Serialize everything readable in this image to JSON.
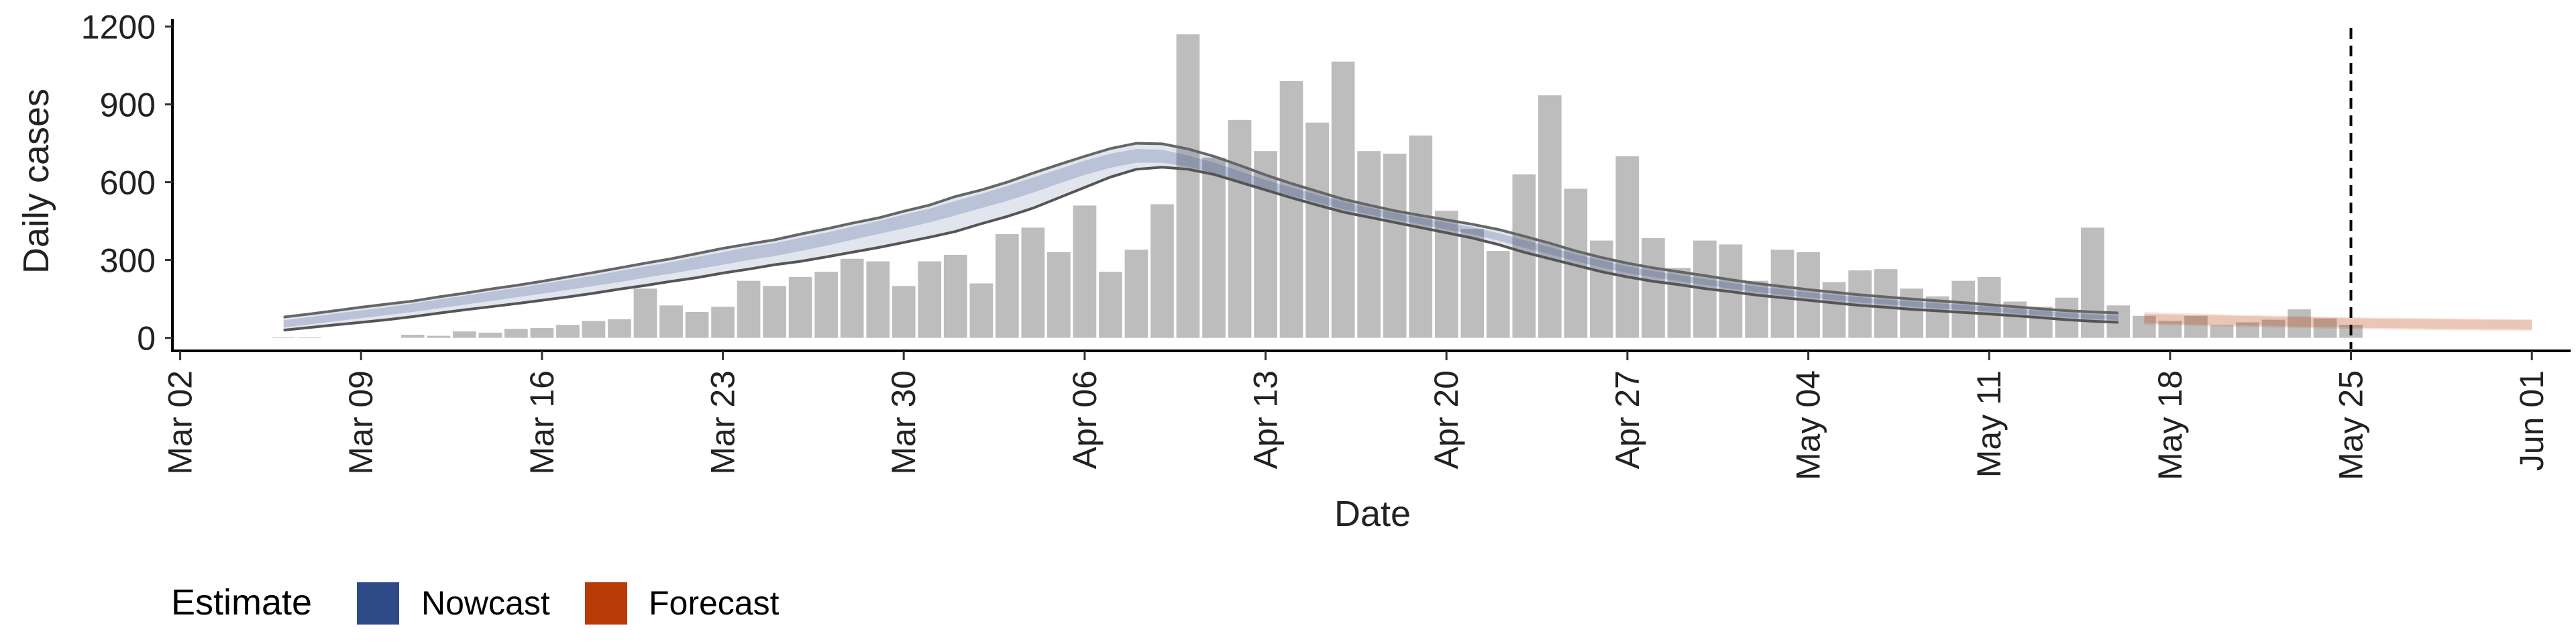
{
  "chart_data": {
    "type": "bar",
    "title": "",
    "xlabel": "Date",
    "ylabel": "Daily cases",
    "ylim": [
      -50,
      1230
    ],
    "yticks": [
      0,
      300,
      600,
      900,
      1200
    ],
    "y_tick_labels": [
      "0",
      "300",
      "600",
      "900",
      "1200"
    ],
    "x_start": "2020-03-02",
    "xlim_days": [
      -0.3,
      92.5
    ],
    "xticks": [
      {
        "label": "Mar 02",
        "date": "2020-03-02"
      },
      {
        "label": "Mar 09",
        "date": "2020-03-09"
      },
      {
        "label": "Mar 16",
        "date": "2020-03-16"
      },
      {
        "label": "Mar 23",
        "date": "2020-03-23"
      },
      {
        "label": "Mar 30",
        "date": "2020-03-30"
      },
      {
        "label": "Apr 06",
        "date": "2020-04-06"
      },
      {
        "label": "Apr 13",
        "date": "2020-04-13"
      },
      {
        "label": "Apr 20",
        "date": "2020-04-20"
      },
      {
        "label": "Apr 27",
        "date": "2020-04-27"
      },
      {
        "label": "May 04",
        "date": "2020-05-04"
      },
      {
        "label": "May 11",
        "date": "2020-05-11"
      },
      {
        "label": "May 18",
        "date": "2020-05-18"
      },
      {
        "label": "May 25",
        "date": "2020-05-25"
      },
      {
        "label": "Jun 01",
        "date": "2020-06-01"
      }
    ],
    "bar_color": "#bdbdbd",
    "bars": {
      "first_date": "2020-03-06",
      "values": [
        2,
        2,
        0,
        0,
        0,
        12,
        8,
        25,
        20,
        35,
        38,
        50,
        65,
        72,
        190,
        125,
        100,
        120,
        220,
        200,
        235,
        255,
        305,
        295,
        200,
        295,
        320,
        210,
        400,
        425,
        330,
        510,
        255,
        340,
        515,
        1170,
        695,
        840,
        720,
        990,
        830,
        1065,
        720,
        710,
        780,
        490,
        420,
        335,
        630,
        935,
        575,
        375,
        700,
        385,
        270,
        375,
        360,
        220,
        340,
        330,
        215,
        260,
        265,
        190,
        160,
        220,
        235,
        140,
        120,
        155,
        425,
        125,
        85,
        65,
        85,
        50,
        60,
        70,
        110,
        75,
        50
      ]
    },
    "series": [
      {
        "name": "Nowcast",
        "color": "#2e4a87",
        "start_date": "2020-03-06",
        "median": [
          55,
          67,
          80,
          93,
          105,
          118,
          135,
          150,
          165,
          180,
          195,
          212,
          228,
          245,
          262,
          280,
          298,
          318,
          335,
          350,
          372,
          393,
          415,
          436,
          462,
          486,
          515,
          540,
          568,
          600,
          632,
          663,
          690,
          705,
          700,
          680,
          652,
          620,
          590,
          565,
          538,
          512,
          490,
          470,
          452,
          432,
          414,
          390,
          362,
          335,
          308,
          285,
          262,
          245,
          230,
          214,
          200,
          186,
          175,
          164,
          155,
          146,
          138,
          131,
          124,
          118,
          112,
          104,
          96,
          88,
          80,
          75
        ],
        "lower": [
          30,
          40,
          50,
          60,
          70,
          82,
          95,
          108,
          120,
          132,
          145,
          158,
          172,
          188,
          202,
          218,
          232,
          250,
          265,
          282,
          295,
          312,
          330,
          348,
          368,
          388,
          410,
          440,
          468,
          500,
          540,
          580,
          620,
          650,
          658,
          650,
          630,
          600,
          570,
          540,
          512,
          485,
          465,
          445,
          425,
          405,
          385,
          360,
          330,
          305,
          280,
          255,
          235,
          218,
          205,
          190,
          178,
          165,
          155,
          145,
          135,
          125,
          118,
          110,
          104,
          98,
          92,
          85,
          78,
          70,
          64,
          60
        ],
        "upper": [
          80,
          92,
          105,
          118,
          130,
          142,
          158,
          172,
          188,
          202,
          218,
          235,
          252,
          270,
          288,
          305,
          325,
          345,
          362,
          378,
          400,
          420,
          442,
          462,
          488,
          512,
          545,
          570,
          600,
          635,
          668,
          700,
          730,
          750,
          748,
          728,
          700,
          665,
          628,
          595,
          565,
          535,
          512,
          490,
          472,
          455,
          438,
          418,
          392,
          365,
          335,
          310,
          288,
          270,
          255,
          240,
          224,
          210,
          198,
          186,
          176,
          166,
          158,
          150,
          143,
          136,
          128,
          120,
          112,
          105,
          100,
          96
        ],
        "band50_lower": [
          40,
          52,
          64,
          76,
          88,
          100,
          114,
          128,
          142,
          156,
          170,
          185,
          200,
          215,
          232,
          248,
          265,
          282,
          300,
          315,
          335,
          355,
          378,
          400,
          422,
          445,
          472,
          500,
          528,
          560,
          595,
          628,
          656,
          675,
          675,
          660,
          635,
          605,
          575,
          548,
          522,
          496,
          476,
          456,
          438,
          418,
          400,
          375,
          348,
          322,
          296,
          272,
          250,
          234,
          219,
          204,
          190,
          177,
          166,
          156,
          146,
          137,
          129,
          121,
          114,
          108,
          102,
          94,
          87,
          80,
          73,
          69
        ],
        "band50_upper": [
          68,
          80,
          94,
          106,
          118,
          132,
          148,
          162,
          178,
          192,
          208,
          224,
          240,
          258,
          275,
          292,
          312,
          330,
          350,
          365,
          386,
          406,
          428,
          450,
          475,
          498,
          528,
          555,
          585,
          618,
          650,
          683,
          710,
          728,
          725,
          703,
          676,
          643,
          608,
          580,
          552,
          525,
          502,
          482,
          462,
          444,
          427,
          404,
          377,
          350,
          322,
          298,
          275,
          258,
          242,
          227,
          212,
          198,
          187,
          175,
          165,
          156,
          148,
          140,
          133,
          127,
          120,
          112,
          104,
          96,
          90,
          85
        ]
      },
      {
        "name": "Forecast",
        "color": "#b83a05",
        "start_date": "2020-05-17",
        "median": [
          75,
          72,
          70,
          68,
          66,
          64,
          62,
          60,
          58,
          56,
          55,
          54,
          53,
          52,
          51,
          50
        ],
        "lower": [
          50,
          48,
          46,
          44,
          42,
          40,
          38,
          36,
          34,
          32,
          31,
          30,
          29,
          28,
          27,
          26
        ],
        "upper": [
          100,
          97,
          94,
          91,
          88,
          86,
          84,
          82,
          80,
          78,
          77,
          76,
          75,
          74,
          73,
          72
        ]
      }
    ],
    "vline_date": "2020-05-25",
    "legend": {
      "title": "Estimate",
      "position": "bottom-left",
      "entries": [
        {
          "label": "Nowcast",
          "color": "#2e4a87"
        },
        {
          "label": "Forecast",
          "color": "#b83a05"
        }
      ]
    },
    "grid": false
  }
}
